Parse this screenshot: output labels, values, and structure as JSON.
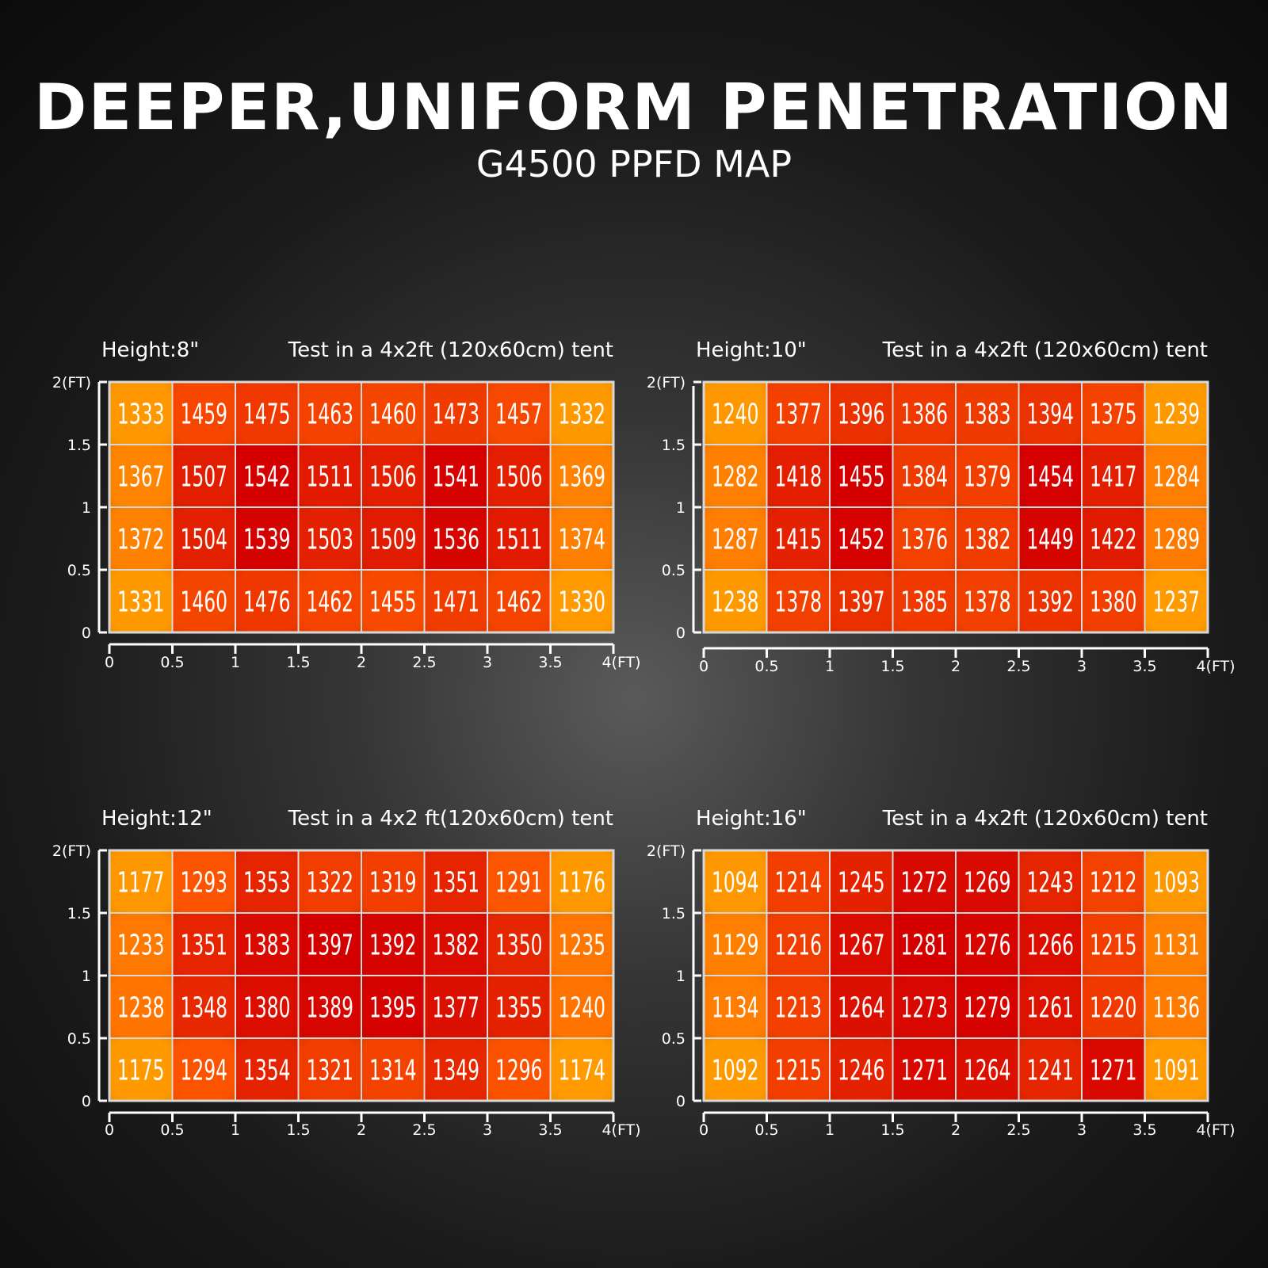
{
  "header": {
    "title": "DEEPER,UNIFORM PENETRATION",
    "subtitle": "G4500 PPFD MAP"
  },
  "colors": {
    "low": "#ff9a00",
    "mid": "#ff5a00",
    "high": "#d40000",
    "grid_line": "#d8d8d8",
    "axis": "#ffffff"
  },
  "chart_data": [
    {
      "type": "heatmap",
      "height_label": "Height:8\"",
      "test_label": "Test in a 4x2ft (120x60cm) tent",
      "x_ticks": [
        "0",
        "0.5",
        "1",
        "1.5",
        "2",
        "2.5",
        "3",
        "3.5",
        "4(FT)"
      ],
      "y_ticks": [
        "2(FT)",
        "1.5",
        "1",
        "0.5",
        "0"
      ],
      "xlim": [
        0,
        4
      ],
      "ylim": [
        0,
        2
      ],
      "rows": [
        [
          1333,
          1459,
          1475,
          1463,
          1460,
          1473,
          1457,
          1332
        ],
        [
          1367,
          1507,
          1542,
          1511,
          1506,
          1541,
          1506,
          1369
        ],
        [
          1372,
          1504,
          1539,
          1503,
          1509,
          1536,
          1511,
          1374
        ],
        [
          1331,
          1460,
          1476,
          1462,
          1455,
          1471,
          1462,
          1330
        ]
      ]
    },
    {
      "type": "heatmap",
      "height_label": "Height:10\"",
      "test_label": "Test in a 4x2ft (120x60cm) tent",
      "x_ticks": [
        "0",
        "0.5",
        "1",
        "1.5",
        "2",
        "2.5",
        "3",
        "3.5",
        "4(FT)"
      ],
      "y_ticks": [
        "2(FT)",
        "1.5",
        "1",
        "0.5",
        "0"
      ],
      "xlim": [
        0,
        4
      ],
      "ylim": [
        0,
        2
      ],
      "rows": [
        [
          1240,
          1377,
          1396,
          1386,
          1383,
          1394,
          1375,
          1239
        ],
        [
          1282,
          1418,
          1455,
          1384,
          1379,
          1454,
          1417,
          1284
        ],
        [
          1287,
          1415,
          1452,
          1376,
          1382,
          1449,
          1422,
          1289
        ],
        [
          1238,
          1378,
          1397,
          1385,
          1378,
          1392,
          1380,
          1237
        ]
      ]
    },
    {
      "type": "heatmap",
      "height_label": "Height:12\"",
      "test_label": "Test in a 4x2 ft(120x60cm) tent",
      "x_ticks": [
        "0",
        "0.5",
        "1",
        "1.5",
        "2",
        "2.5",
        "3",
        "3.5",
        "4(FT)"
      ],
      "y_ticks": [
        "2(FT)",
        "1.5",
        "1",
        "0.5",
        "0"
      ],
      "xlim": [
        0,
        4
      ],
      "ylim": [
        0,
        2
      ],
      "rows": [
        [
          1177,
          1293,
          1353,
          1322,
          1319,
          1351,
          1291,
          1176
        ],
        [
          1233,
          1351,
          1383,
          1397,
          1392,
          1382,
          1350,
          1235
        ],
        [
          1238,
          1348,
          1380,
          1389,
          1395,
          1377,
          1355,
          1240
        ],
        [
          1175,
          1294,
          1354,
          1321,
          1314,
          1349,
          1296,
          1174
        ]
      ]
    },
    {
      "type": "heatmap",
      "height_label": "Height:16\"",
      "test_label": "Test in a 4x2ft (120x60cm) tent",
      "x_ticks": [
        "0",
        "0.5",
        "1",
        "1.5",
        "2",
        "2.5",
        "3",
        "3.5",
        "4(FT)"
      ],
      "y_ticks": [
        "2(FT)",
        "1.5",
        "1",
        "0.5",
        "0"
      ],
      "xlim": [
        0,
        4
      ],
      "ylim": [
        0,
        2
      ],
      "rows": [
        [
          1094,
          1214,
          1245,
          1272,
          1269,
          1243,
          1212,
          1093
        ],
        [
          1129,
          1216,
          1267,
          1281,
          1276,
          1266,
          1215,
          1131
        ],
        [
          1134,
          1213,
          1264,
          1273,
          1279,
          1261,
          1220,
          1136
        ],
        [
          1092,
          1215,
          1246,
          1271,
          1264,
          1241,
          1271,
          1091
        ]
      ]
    }
  ]
}
